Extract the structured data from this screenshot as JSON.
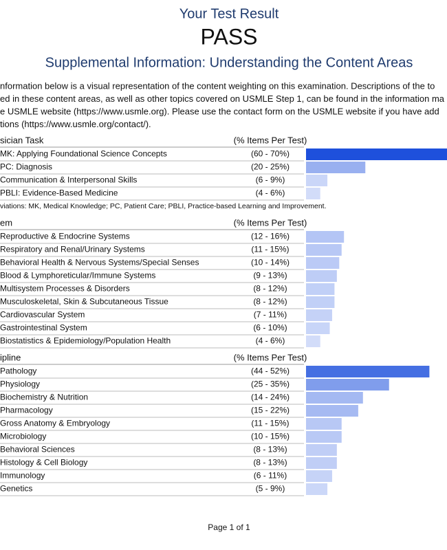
{
  "header": {
    "title": "Your Test Result",
    "result": "PASS",
    "subtitle": "Supplemental Information: Understanding the Content Areas"
  },
  "intro": [
    "nformation below is a visual representation of the content weighting on this examination. Descriptions of the to",
    "ed in these content areas, as well as other topics covered on USMLE Step 1, can be found in the information ma",
    "e USMLE website (https://www.usmle.org). Please use the contact form on the USMLE website if you have add",
    "tions (https://www.usmle.org/contact/)."
  ],
  "sections": [
    {
      "heading": "sician Task",
      "column": "(% Items Per Test)",
      "rows": [
        {
          "label": "MK: Applying Foundational Science Concepts",
          "range": "(60 - 70%)",
          "low": 60,
          "high": 70
        },
        {
          "label": "PC: Diagnosis",
          "range": "(20 - 25%)",
          "low": 20,
          "high": 25
        },
        {
          "label": "Communication & Interpersonal Skills",
          "range": "(6 - 9%)",
          "low": 6,
          "high": 9
        },
        {
          "label": "PBLI: Evidence-Based Medicine",
          "range": "(4 - 6%)",
          "low": 4,
          "high": 6
        }
      ],
      "note": "viations: MK, Medical Knowledge; PC, Patient Care; PBLI, Practice-based Learning and Improvement."
    },
    {
      "heading": "em",
      "column": "(% Items Per Test)",
      "rows": [
        {
          "label": "Reproductive & Endocrine Systems",
          "range": "(12 - 16%)",
          "low": 12,
          "high": 16
        },
        {
          "label": "Respiratory and Renal/Urinary Systems",
          "range": "(11 - 15%)",
          "low": 11,
          "high": 15
        },
        {
          "label": "Behavioral Health & Nervous Systems/Special Senses",
          "range": "(10 - 14%)",
          "low": 10,
          "high": 14
        },
        {
          "label": "Blood & Lymphoreticular/Immune Systems",
          "range": "(9 - 13%)",
          "low": 9,
          "high": 13
        },
        {
          "label": "Multisystem Processes & Disorders",
          "range": "(8 - 12%)",
          "low": 8,
          "high": 12
        },
        {
          "label": "Musculoskeletal, Skin & Subcutaneous Tissue",
          "range": "(8 - 12%)",
          "low": 8,
          "high": 12
        },
        {
          "label": "Cardiovascular System",
          "range": "(7 - 11%)",
          "low": 7,
          "high": 11
        },
        {
          "label": "Gastrointestinal System",
          "range": "(6 - 10%)",
          "low": 6,
          "high": 10
        },
        {
          "label": "Biostatistics & Epidemiology/Population Health",
          "range": "(4 - 6%)",
          "low": 4,
          "high": 6
        }
      ]
    },
    {
      "heading": "ipline",
      "column": "(% Items Per Test)",
      "rows": [
        {
          "label": "Pathology",
          "range": "(44 - 52%)",
          "low": 44,
          "high": 52
        },
        {
          "label": "Physiology",
          "range": "(25 - 35%)",
          "low": 25,
          "high": 35
        },
        {
          "label": "Biochemistry & Nutrition",
          "range": "(14 - 24%)",
          "low": 14,
          "high": 24
        },
        {
          "label": "Pharmacology",
          "range": "(15 - 22%)",
          "low": 15,
          "high": 22
        },
        {
          "label": "Gross Anatomy & Embryology",
          "range": "(11 - 15%)",
          "low": 11,
          "high": 15
        },
        {
          "label": "Microbiology",
          "range": "(10 - 15%)",
          "low": 10,
          "high": 15
        },
        {
          "label": "Behavioral Sciences",
          "range": "(8 - 13%)",
          "low": 8,
          "high": 13
        },
        {
          "label": "Histology & Cell Biology",
          "range": "(8 - 13%)",
          "low": 8,
          "high": 13
        },
        {
          "label": "Immunology",
          "range": "(6 - 11%)",
          "low": 6,
          "high": 11
        },
        {
          "label": "Genetics",
          "range": "(5 - 9%)",
          "low": 5,
          "high": 9
        }
      ]
    }
  ],
  "footer": "Page 1 of 1"
}
